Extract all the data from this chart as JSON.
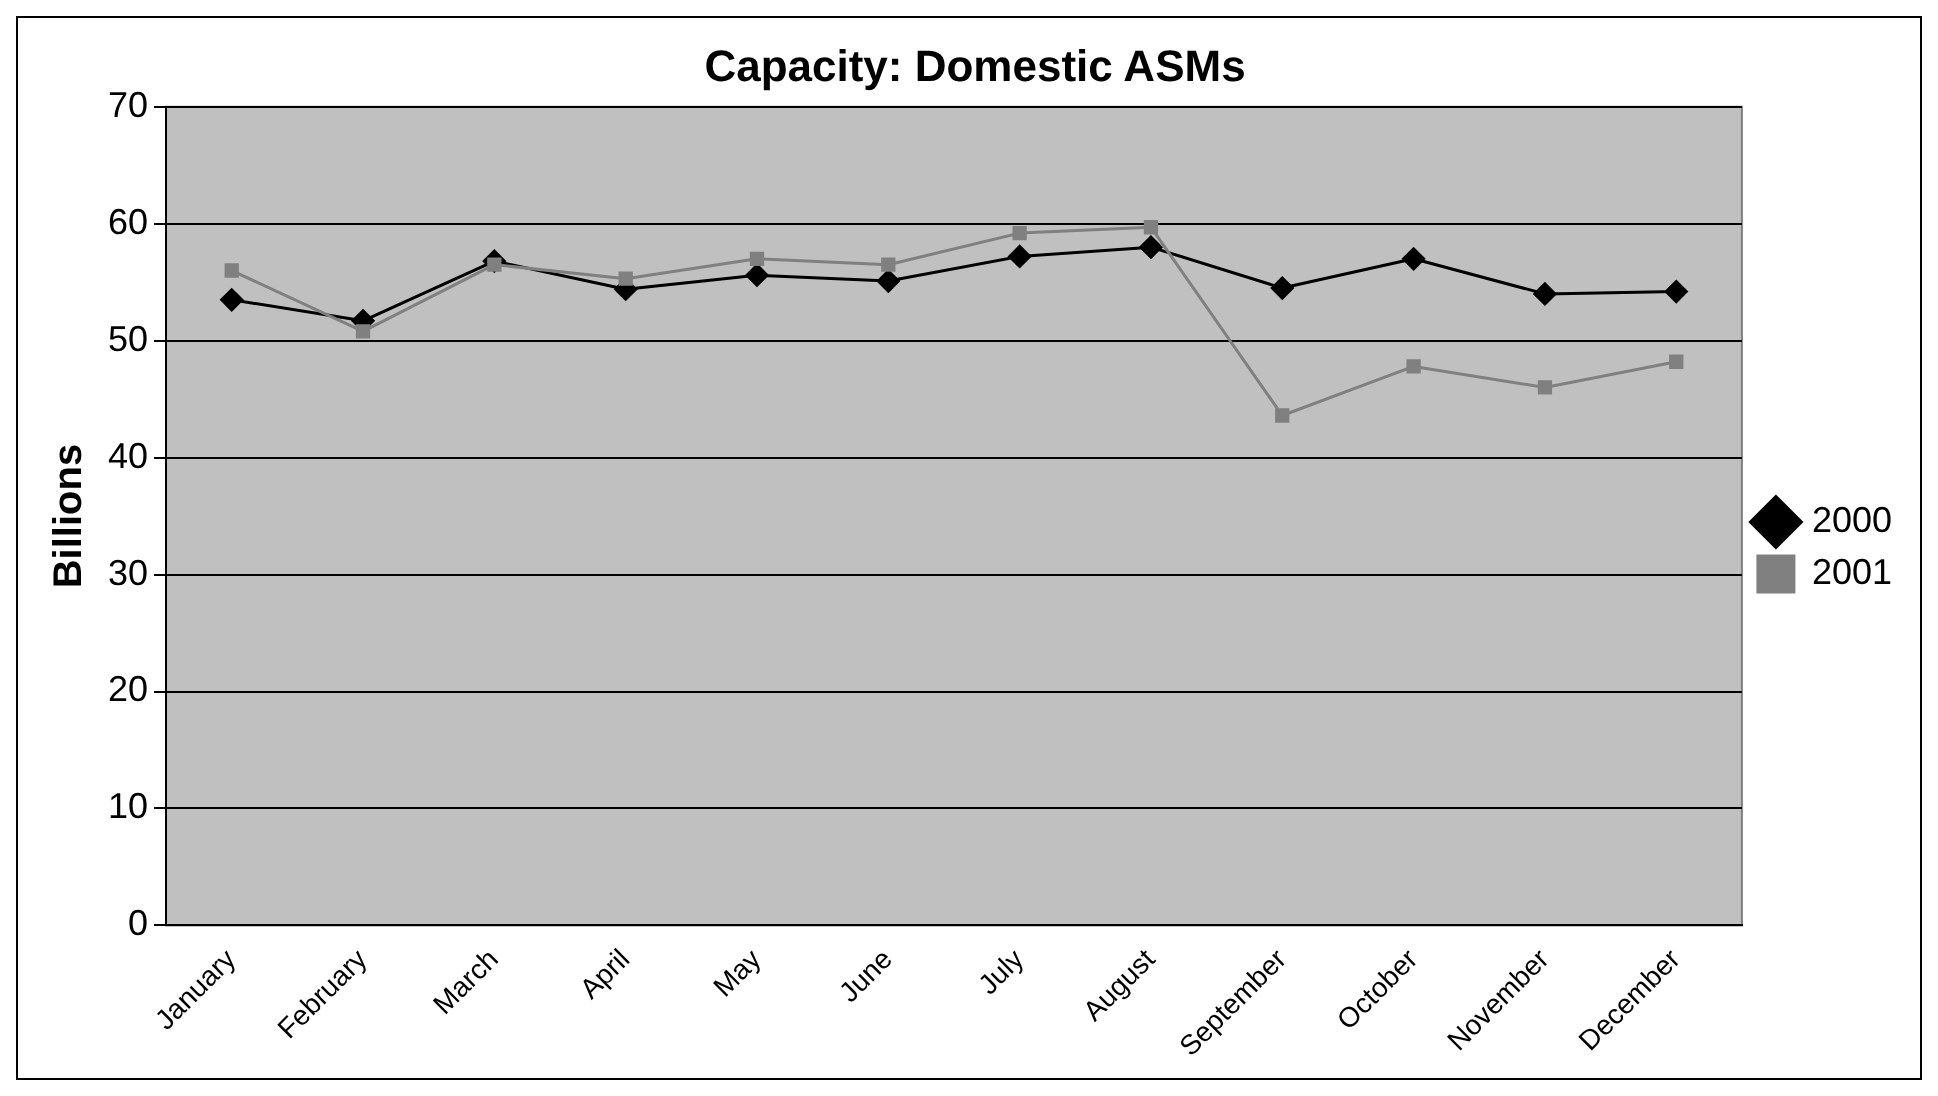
{
  "chart_data": {
    "type": "line",
    "title": "Capacity: Domestic ASMs",
    "ylabel": "Billions",
    "categories": [
      "January",
      "February",
      "March",
      "April",
      "May",
      "June",
      "July",
      "August",
      "September",
      "October",
      "November",
      "December"
    ],
    "series": [
      {
        "name": "2000",
        "color": "#000000",
        "marker": "diamond",
        "values": [
          53.5,
          51.7,
          56.8,
          54.4,
          55.6,
          55.1,
          57.2,
          58.0,
          54.5,
          57.0,
          54.0,
          54.2
        ]
      },
      {
        "name": "2001",
        "color": "#808080",
        "marker": "square",
        "values": [
          56.0,
          50.8,
          56.5,
          55.3,
          57.0,
          56.5,
          59.2,
          59.7,
          43.6,
          47.8,
          46.0,
          48.2
        ]
      }
    ],
    "ylim": [
      0,
      70
    ],
    "yticks": [
      0,
      10,
      20,
      30,
      40,
      50,
      60,
      70
    ],
    "grid": "y",
    "legend": "right",
    "line_style": "solid"
  }
}
